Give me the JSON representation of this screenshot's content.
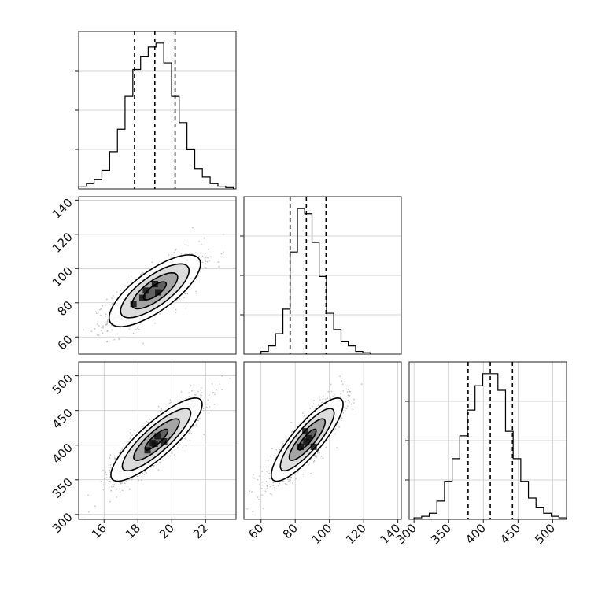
{
  "colors": {
    "line": "#000000",
    "grid": "#c8c8c8",
    "dots": "#9a9a9a"
  },
  "chart_data": [
    {
      "type": "histogram",
      "variable": "x",
      "xlim": [
        14.5,
        23.8
      ],
      "bin_edges": [
        14.5,
        14.96,
        15.41,
        15.87,
        16.33,
        16.79,
        17.24,
        17.7,
        18.16,
        18.61,
        19.07,
        19.53,
        19.99,
        20.44,
        20.9,
        21.36,
        21.81,
        22.27,
        22.73,
        23.19,
        23.64
      ],
      "counts": [
        2,
        4,
        7,
        14,
        28,
        45,
        70,
        90,
        100,
        107,
        110,
        95,
        70,
        50,
        30,
        15,
        9,
        4,
        2,
        1
      ],
      "quantiles": [
        17.8,
        19.0,
        20.2
      ],
      "xticks": [],
      "yticks_visible": true,
      "grid": true
    },
    {
      "type": "scatter_density",
      "x_variable": "x",
      "y_variable": "y",
      "xlim": [
        14.5,
        23.8
      ],
      "ylim": [
        50,
        142
      ],
      "yticks": [
        "60",
        "80",
        "100",
        "120",
        "140"
      ],
      "xticks": [],
      "center": [
        19.0,
        87.0
      ],
      "sigma": [
        1.35,
        10.5
      ],
      "correlation": 0.75,
      "contour_levels_sigma": [
        0.5,
        1.0,
        1.5,
        2.0
      ],
      "grid": true
    },
    {
      "type": "histogram",
      "variable": "y",
      "xlim": [
        50,
        142
      ],
      "bin_edges": [
        60,
        64.3,
        68.5,
        72.8,
        77.0,
        81.3,
        85.5,
        89.8,
        94.0,
        98.3,
        102.5,
        106.8,
        111.0,
        115.3,
        119.5,
        123.8
      ],
      "counts": [
        2,
        6,
        15,
        33,
        75,
        107,
        103,
        82,
        57,
        30,
        18,
        9,
        6,
        2,
        1
      ],
      "quantiles": [
        77,
        86.5,
        98
      ],
      "xticks": [],
      "yticks_visible": true,
      "grid": true
    },
    {
      "type": "scatter_density",
      "x_variable": "x",
      "y_variable": "z",
      "xlim": [
        14.5,
        23.8
      ],
      "ylim": [
        293,
        520
      ],
      "xticks": [
        "16",
        "18",
        "20",
        "22"
      ],
      "yticks": [
        "300",
        "350",
        "400",
        "450",
        "500"
      ],
      "center": [
        19.1,
        408
      ],
      "sigma": [
        1.35,
        30
      ],
      "correlation": 0.85,
      "contour_levels_sigma": [
        0.5,
        1.0,
        1.5,
        2.0
      ],
      "grid": true
    },
    {
      "type": "scatter_density",
      "x_variable": "y",
      "y_variable": "z",
      "xlim": [
        50,
        142
      ],
      "ylim": [
        293,
        520
      ],
      "xticks": [
        "60",
        "80",
        "100",
        "120",
        "140"
      ],
      "yticks": [],
      "center": [
        87,
        408
      ],
      "sigma": [
        10.5,
        30
      ],
      "correlation": 0.85,
      "contour_levels_sigma": [
        0.5,
        1.0,
        1.5,
        2.0
      ],
      "grid": true
    },
    {
      "type": "histogram",
      "variable": "z",
      "xlim": [
        293,
        520
      ],
      "bin_edges": [
        300,
        311,
        322,
        333,
        344,
        355,
        366,
        377,
        388,
        399,
        410,
        421,
        432,
        443,
        454,
        465,
        476,
        487,
        498,
        509,
        520
      ],
      "counts": [
        1,
        2,
        4,
        12,
        25,
        40,
        55,
        72,
        88,
        96,
        96,
        85,
        58,
        40,
        25,
        14,
        8,
        4,
        2,
        1
      ],
      "quantiles": [
        378,
        410,
        442
      ],
      "xticks": [
        "300",
        "350",
        "400",
        "450",
        "500"
      ],
      "yticks_visible": true,
      "grid": true
    }
  ]
}
